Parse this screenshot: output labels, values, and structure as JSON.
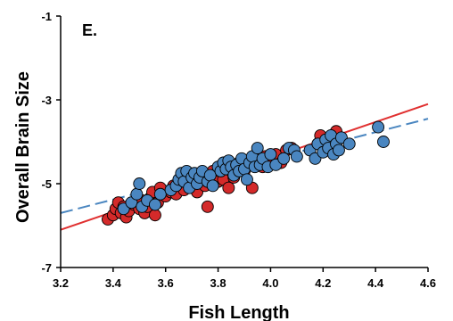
{
  "chart_data": {
    "type": "scatter",
    "panel_label": "E.",
    "xlabel": "Fish Length",
    "ylabel": "Overall Brain Size",
    "xlim": [
      3.2,
      4.6
    ],
    "ylim": [
      -7,
      -1
    ],
    "x_ticks": [
      "3.2",
      "3.4",
      "3.6",
      "3.8",
      "4.0",
      "4.2",
      "4.4",
      "4.6"
    ],
    "y_ticks": [
      "-1",
      "-3",
      "-5",
      "-7"
    ],
    "grid": false,
    "legend": "none",
    "colors": {
      "red": "#d42a2a",
      "blue": "#4a86c0",
      "red_line": "#e03030",
      "blue_line": "#4a86c0"
    },
    "series": [
      {
        "color": "red",
        "points": [
          [
            3.38,
            -5.85
          ],
          [
            3.4,
            -5.75
          ],
          [
            3.41,
            -5.6
          ],
          [
            3.42,
            -5.45
          ],
          [
            3.43,
            -5.7
          ],
          [
            3.44,
            -5.55
          ],
          [
            3.45,
            -5.8
          ],
          [
            3.46,
            -5.65
          ],
          [
            3.48,
            -5.5
          ],
          [
            3.5,
            -5.6
          ],
          [
            3.51,
            -5.4
          ],
          [
            3.52,
            -5.7
          ],
          [
            3.53,
            -5.55
          ],
          [
            3.54,
            -5.35
          ],
          [
            3.55,
            -5.2
          ],
          [
            3.56,
            -5.75
          ],
          [
            3.57,
            -5.45
          ],
          [
            3.58,
            -5.1
          ],
          [
            3.6,
            -5.3
          ],
          [
            3.62,
            -5.2
          ],
          [
            3.63,
            -5.05
          ],
          [
            3.64,
            -5.25
          ],
          [
            3.66,
            -4.95
          ],
          [
            3.67,
            -5.15
          ],
          [
            3.68,
            -4.85
          ],
          [
            3.7,
            -5.05
          ],
          [
            3.71,
            -4.9
          ],
          [
            3.72,
            -5.2
          ],
          [
            3.74,
            -4.75
          ],
          [
            3.75,
            -5.05
          ],
          [
            3.76,
            -5.55
          ],
          [
            3.78,
            -4.7
          ],
          [
            3.8,
            -4.95
          ],
          [
            3.82,
            -4.9
          ],
          [
            3.83,
            -4.6
          ],
          [
            3.84,
            -5.1
          ],
          [
            3.86,
            -4.85
          ],
          [
            3.88,
            -4.5
          ],
          [
            3.9,
            -4.7
          ],
          [
            3.92,
            -4.55
          ],
          [
            3.93,
            -5.1
          ],
          [
            3.95,
            -4.4
          ],
          [
            3.97,
            -4.6
          ],
          [
            3.98,
            -4.35
          ],
          [
            4.0,
            -4.45
          ],
          [
            4.02,
            -4.3
          ],
          [
            4.04,
            -4.5
          ],
          [
            4.06,
            -4.2
          ],
          [
            4.08,
            -4.15
          ],
          [
            4.18,
            -4.05
          ],
          [
            4.19,
            -3.85
          ],
          [
            4.22,
            -4.0
          ],
          [
            4.24,
            -3.95
          ],
          [
            4.25,
            -3.75
          ]
        ]
      },
      {
        "color": "blue",
        "points": [
          [
            3.44,
            -5.6
          ],
          [
            3.47,
            -5.45
          ],
          [
            3.49,
            -5.25
          ],
          [
            3.5,
            -5.0
          ],
          [
            3.51,
            -5.55
          ],
          [
            3.53,
            -5.4
          ],
          [
            3.56,
            -5.5
          ],
          [
            3.58,
            -5.25
          ],
          [
            3.62,
            -5.15
          ],
          [
            3.64,
            -5.05
          ],
          [
            3.65,
            -4.9
          ],
          [
            3.66,
            -4.75
          ],
          [
            3.67,
            -4.95
          ],
          [
            3.68,
            -4.7
          ],
          [
            3.69,
            -5.1
          ],
          [
            3.7,
            -4.85
          ],
          [
            3.71,
            -4.75
          ],
          [
            3.72,
            -5.0
          ],
          [
            3.73,
            -4.85
          ],
          [
            3.74,
            -4.7
          ],
          [
            3.76,
            -4.95
          ],
          [
            3.77,
            -4.8
          ],
          [
            3.78,
            -5.05
          ],
          [
            3.8,
            -4.6
          ],
          [
            3.81,
            -4.7
          ],
          [
            3.82,
            -4.5
          ],
          [
            3.83,
            -4.65
          ],
          [
            3.84,
            -4.45
          ],
          [
            3.85,
            -4.6
          ],
          [
            3.86,
            -4.8
          ],
          [
            3.87,
            -4.55
          ],
          [
            3.88,
            -4.7
          ],
          [
            3.89,
            -4.4
          ],
          [
            3.9,
            -4.65
          ],
          [
            3.91,
            -4.9
          ],
          [
            3.92,
            -4.5
          ],
          [
            3.93,
            -4.35
          ],
          [
            3.94,
            -4.6
          ],
          [
            3.95,
            -4.15
          ],
          [
            3.96,
            -4.55
          ],
          [
            3.97,
            -4.4
          ],
          [
            3.99,
            -4.6
          ],
          [
            4.0,
            -4.3
          ],
          [
            4.02,
            -4.55
          ],
          [
            4.05,
            -4.4
          ],
          [
            4.07,
            -4.15
          ],
          [
            4.09,
            -4.2
          ],
          [
            4.1,
            -4.35
          ],
          [
            4.15,
            -4.2
          ],
          [
            4.17,
            -4.4
          ],
          [
            4.18,
            -4.05
          ],
          [
            4.2,
            -4.25
          ],
          [
            4.21,
            -3.95
          ],
          [
            4.22,
            -4.15
          ],
          [
            4.23,
            -3.85
          ],
          [
            4.24,
            -4.3
          ],
          [
            4.25,
            -4.05
          ],
          [
            4.26,
            -4.2
          ],
          [
            4.27,
            -3.9
          ],
          [
            4.3,
            -4.05
          ],
          [
            4.41,
            -3.65
          ],
          [
            4.43,
            -4.0
          ]
        ]
      }
    ],
    "fit_lines": [
      {
        "color": "red_line",
        "style": "solid",
        "x": [
          3.2,
          4.6
        ],
        "y": [
          -6.1,
          -3.1
        ]
      },
      {
        "color": "blue_line",
        "style": "dashed",
        "x": [
          3.2,
          4.6
        ],
        "y": [
          -5.7,
          -3.45
        ]
      }
    ]
  }
}
